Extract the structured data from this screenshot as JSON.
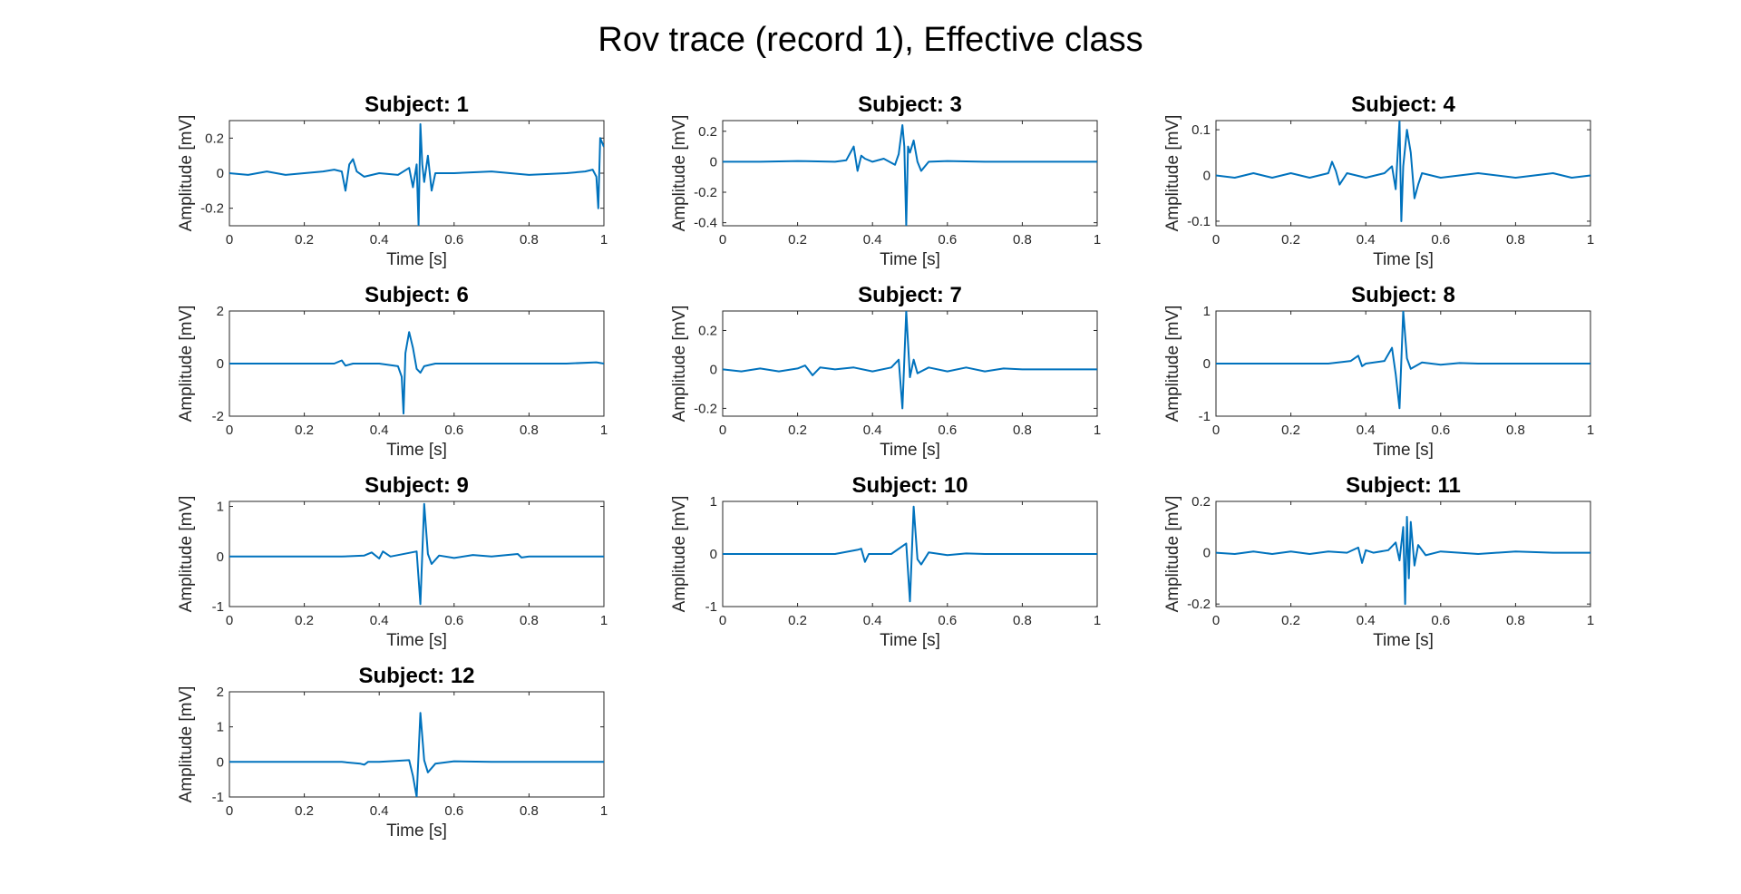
{
  "figure_title": "Rov trace (record 1), Effective class",
  "line_color": "#0072BD",
  "chart_data": [
    {
      "type": "line",
      "title": "Subject: 1",
      "xlabel": "Time [s]",
      "ylabel": "Amplitude [mV]",
      "xlim": [
        0,
        1
      ],
      "ylim": [
        -0.3,
        0.3
      ],
      "xticks": [
        0,
        0.2,
        0.4,
        0.6,
        0.8,
        1
      ],
      "xtick_labels": [
        "0",
        "0.2",
        "0.4",
        "0.6",
        "0.8",
        "1"
      ],
      "yticks": [
        -0.2,
        0,
        0.2
      ],
      "ytick_labels": [
        "-0.2",
        "0",
        "0.2"
      ],
      "series": [
        {
          "x": [
            0,
            0.05,
            0.1,
            0.15,
            0.2,
            0.25,
            0.28,
            0.3,
            0.31,
            0.32,
            0.33,
            0.34,
            0.36,
            0.4,
            0.45,
            0.48,
            0.49,
            0.5,
            0.505,
            0.51,
            0.515,
            0.52,
            0.53,
            0.54,
            0.55,
            0.6,
            0.7,
            0.8,
            0.9,
            0.95,
            0.97,
            0.98,
            0.985,
            0.99,
            1
          ],
          "y": [
            0,
            -0.01,
            0.01,
            -0.01,
            0,
            0.01,
            0.02,
            0.01,
            -0.1,
            0.05,
            0.08,
            0.01,
            -0.02,
            0,
            -0.01,
            0.03,
            -0.08,
            0.05,
            -0.3,
            0.28,
            0.05,
            -0.05,
            0.1,
            -0.1,
            0,
            0,
            0.01,
            -0.01,
            0,
            0.01,
            0.02,
            -0.02,
            -0.2,
            0.2,
            0.15
          ]
        }
      ]
    },
    {
      "type": "line",
      "title": "Subject: 3",
      "xlabel": "Time [s]",
      "ylabel": "Amplitude [mV]",
      "xlim": [
        0,
        1
      ],
      "ylim": [
        -0.42,
        0.27
      ],
      "xticks": [
        0,
        0.2,
        0.4,
        0.6,
        0.8,
        1
      ],
      "xtick_labels": [
        "0",
        "0.2",
        "0.4",
        "0.6",
        "0.8",
        "1"
      ],
      "yticks": [
        -0.4,
        -0.2,
        0,
        0.2
      ],
      "ytick_labels": [
        "-0.4",
        "-0.2",
        "0",
        "0.2"
      ],
      "series": [
        {
          "x": [
            0,
            0.1,
            0.2,
            0.3,
            0.33,
            0.35,
            0.36,
            0.37,
            0.38,
            0.4,
            0.43,
            0.46,
            0.47,
            0.48,
            0.485,
            0.49,
            0.495,
            0.5,
            0.51,
            0.52,
            0.53,
            0.55,
            0.6,
            0.7,
            0.8,
            0.9,
            1
          ],
          "y": [
            0,
            0,
            0.005,
            0,
            0.01,
            0.1,
            -0.06,
            0.04,
            0.02,
            0,
            0.02,
            -0.02,
            0.05,
            0.24,
            0.1,
            -0.42,
            0.1,
            0.06,
            0.14,
            0,
            -0.06,
            0,
            0.005,
            0,
            0,
            0,
            0
          ]
        }
      ]
    },
    {
      "type": "line",
      "title": "Subject: 4",
      "xlabel": "Time [s]",
      "ylabel": "Amplitude [mV]",
      "xlim": [
        0,
        1
      ],
      "ylim": [
        -0.11,
        0.12
      ],
      "xticks": [
        0,
        0.2,
        0.4,
        0.6,
        0.8,
        1
      ],
      "xtick_labels": [
        "0",
        "0.2",
        "0.4",
        "0.6",
        "0.8",
        "1"
      ],
      "yticks": [
        -0.1,
        0,
        0.1
      ],
      "ytick_labels": [
        "-0.1",
        "0",
        "0.1"
      ],
      "series": [
        {
          "x": [
            0,
            0.05,
            0.1,
            0.15,
            0.2,
            0.25,
            0.3,
            0.31,
            0.32,
            0.33,
            0.35,
            0.4,
            0.45,
            0.47,
            0.48,
            0.49,
            0.495,
            0.5,
            0.51,
            0.52,
            0.53,
            0.54,
            0.55,
            0.6,
            0.7,
            0.8,
            0.9,
            0.95,
            1
          ],
          "y": [
            0,
            -0.005,
            0.005,
            -0.005,
            0.005,
            -0.005,
            0.005,
            0.03,
            0.01,
            -0.02,
            0.005,
            -0.005,
            0.005,
            0.02,
            -0.03,
            0.12,
            -0.1,
            0.02,
            0.1,
            0.05,
            -0.05,
            -0.02,
            0.005,
            -0.005,
            0.005,
            -0.005,
            0.005,
            -0.005,
            0
          ]
        }
      ]
    },
    {
      "type": "line",
      "title": "Subject: 6",
      "xlabel": "Time [s]",
      "ylabel": "Amplitude [mV]",
      "xlim": [
        0,
        1
      ],
      "ylim": [
        -2,
        2
      ],
      "xticks": [
        0,
        0.2,
        0.4,
        0.6,
        0.8,
        1
      ],
      "xtick_labels": [
        "0",
        "0.2",
        "0.4",
        "0.6",
        "0.8",
        "1"
      ],
      "yticks": [
        -2,
        0,
        2
      ],
      "ytick_labels": [
        "-2",
        "0",
        "2"
      ],
      "series": [
        {
          "x": [
            0,
            0.1,
            0.2,
            0.28,
            0.3,
            0.31,
            0.33,
            0.4,
            0.45,
            0.46,
            0.465,
            0.47,
            0.48,
            0.49,
            0.5,
            0.51,
            0.52,
            0.55,
            0.6,
            0.7,
            0.8,
            0.9,
            0.98,
            1
          ],
          "y": [
            0,
            0,
            0,
            0,
            0.12,
            -0.08,
            0,
            0,
            -0.1,
            -0.5,
            -1.9,
            0.4,
            1.2,
            0.6,
            -0.2,
            -0.35,
            -0.1,
            0,
            0,
            0,
            0,
            0,
            0.05,
            0
          ]
        }
      ]
    },
    {
      "type": "line",
      "title": "Subject: 7",
      "xlabel": "Time [s]",
      "ylabel": "Amplitude [mV]",
      "xlim": [
        0,
        1
      ],
      "ylim": [
        -0.24,
        0.3
      ],
      "xticks": [
        0,
        0.2,
        0.4,
        0.6,
        0.8,
        1
      ],
      "xtick_labels": [
        "0",
        "0.2",
        "0.4",
        "0.6",
        "0.8",
        "1"
      ],
      "yticks": [
        -0.2,
        0,
        0.2
      ],
      "ytick_labels": [
        "-0.2",
        "0",
        "0.2"
      ],
      "series": [
        {
          "x": [
            0,
            0.05,
            0.1,
            0.15,
            0.2,
            0.22,
            0.24,
            0.26,
            0.3,
            0.35,
            0.4,
            0.45,
            0.47,
            0.48,
            0.49,
            0.5,
            0.51,
            0.52,
            0.55,
            0.6,
            0.65,
            0.7,
            0.75,
            0.8,
            0.9,
            1
          ],
          "y": [
            0,
            -0.01,
            0.005,
            -0.01,
            0.005,
            0.02,
            -0.03,
            0.01,
            0,
            0.01,
            -0.01,
            0.01,
            0.05,
            -0.2,
            0.3,
            -0.04,
            0.05,
            -0.02,
            0.01,
            -0.01,
            0.01,
            -0.01,
            0.005,
            0,
            0,
            0
          ]
        }
      ]
    },
    {
      "type": "line",
      "title": "Subject: 8",
      "xlabel": "Time [s]",
      "ylabel": "Amplitude [mV]",
      "xlim": [
        0,
        1
      ],
      "ylim": [
        -1,
        1
      ],
      "xticks": [
        0,
        0.2,
        0.4,
        0.6,
        0.8,
        1
      ],
      "xtick_labels": [
        "0",
        "0.2",
        "0.4",
        "0.6",
        "0.8",
        "1"
      ],
      "yticks": [
        -1,
        0,
        1
      ],
      "ytick_labels": [
        "-1",
        "0",
        "1"
      ],
      "series": [
        {
          "x": [
            0,
            0.1,
            0.2,
            0.3,
            0.36,
            0.38,
            0.39,
            0.4,
            0.45,
            0.47,
            0.48,
            0.49,
            0.5,
            0.51,
            0.52,
            0.55,
            0.6,
            0.65,
            0.7,
            0.8,
            0.9,
            1
          ],
          "y": [
            0,
            0,
            0,
            0,
            0.05,
            0.15,
            -0.05,
            0,
            0.05,
            0.3,
            -0.2,
            -0.85,
            1.0,
            0.1,
            -0.1,
            0.02,
            -0.02,
            0.01,
            0,
            0,
            0,
            0
          ]
        }
      ]
    },
    {
      "type": "line",
      "title": "Subject: 9",
      "xlabel": "Time [s]",
      "ylabel": "Amplitude [mV]",
      "xlim": [
        0,
        1
      ],
      "ylim": [
        -1,
        1.1
      ],
      "xticks": [
        0,
        0.2,
        0.4,
        0.6,
        0.8,
        1
      ],
      "xtick_labels": [
        "0",
        "0.2",
        "0.4",
        "0.6",
        "0.8",
        "1"
      ],
      "yticks": [
        -1,
        0,
        1
      ],
      "ytick_labels": [
        "-1",
        "0",
        "1"
      ],
      "series": [
        {
          "x": [
            0,
            0.1,
            0.2,
            0.3,
            0.36,
            0.38,
            0.4,
            0.41,
            0.43,
            0.5,
            0.51,
            0.52,
            0.53,
            0.54,
            0.56,
            0.6,
            0.65,
            0.7,
            0.77,
            0.78,
            0.8,
            0.9,
            1
          ],
          "y": [
            0,
            0,
            0,
            0,
            0.02,
            0.08,
            -0.04,
            0.1,
            0,
            0.1,
            -0.95,
            1.05,
            0.05,
            -0.15,
            0.02,
            -0.03,
            0.03,
            0,
            0.05,
            -0.02,
            0,
            0,
            0
          ]
        }
      ]
    },
    {
      "type": "line",
      "title": "Subject: 10",
      "xlabel": "Time [s]",
      "ylabel": "Amplitude [mV]",
      "xlim": [
        0,
        1
      ],
      "ylim": [
        -1,
        1
      ],
      "xticks": [
        0,
        0.2,
        0.4,
        0.6,
        0.8,
        1
      ],
      "xtick_labels": [
        "0",
        "0.2",
        "0.4",
        "0.6",
        "0.8",
        "1"
      ],
      "yticks": [
        -1,
        0,
        1
      ],
      "ytick_labels": [
        "-1",
        "0",
        "1"
      ],
      "series": [
        {
          "x": [
            0,
            0.1,
            0.2,
            0.3,
            0.36,
            0.37,
            0.38,
            0.39,
            0.45,
            0.49,
            0.5,
            0.51,
            0.52,
            0.53,
            0.55,
            0.6,
            0.65,
            0.7,
            0.8,
            0.9,
            1
          ],
          "y": [
            0,
            0,
            0,
            0,
            0.08,
            0.1,
            -0.15,
            0,
            0,
            0.2,
            -0.9,
            0.9,
            -0.1,
            -0.2,
            0.03,
            -0.02,
            0.01,
            0,
            0,
            0,
            0
          ]
        }
      ]
    },
    {
      "type": "line",
      "title": "Subject: 11",
      "xlabel": "Time [s]",
      "ylabel": "Amplitude [mV]",
      "xlim": [
        0,
        1
      ],
      "ylim": [
        -0.21,
        0.2
      ],
      "xticks": [
        0,
        0.2,
        0.4,
        0.6,
        0.8,
        1
      ],
      "xtick_labels": [
        "0",
        "0.2",
        "0.4",
        "0.6",
        "0.8",
        "1"
      ],
      "yticks": [
        -0.2,
        0,
        0.2
      ],
      "ytick_labels": [
        "-0.2",
        "0",
        "0.2"
      ],
      "series": [
        {
          "x": [
            0,
            0.05,
            0.1,
            0.15,
            0.2,
            0.25,
            0.3,
            0.35,
            0.38,
            0.39,
            0.4,
            0.42,
            0.46,
            0.48,
            0.49,
            0.5,
            0.505,
            0.51,
            0.515,
            0.52,
            0.53,
            0.54,
            0.56,
            0.6,
            0.7,
            0.8,
            0.9,
            1
          ],
          "y": [
            0,
            -0.005,
            0.005,
            -0.005,
            0.005,
            -0.005,
            0.005,
            0,
            0.02,
            -0.04,
            0.01,
            0,
            0.01,
            0.04,
            -0.03,
            0.1,
            -0.2,
            0.14,
            -0.1,
            0.12,
            -0.05,
            0.03,
            -0.01,
            0.005,
            -0.005,
            0.005,
            0,
            0
          ]
        }
      ]
    },
    {
      "type": "line",
      "title": "Subject: 12",
      "xlabel": "Time [s]",
      "ylabel": "Amplitude [mV]",
      "xlim": [
        0,
        1
      ],
      "ylim": [
        -1,
        2
      ],
      "xticks": [
        0,
        0.2,
        0.4,
        0.6,
        0.8,
        1
      ],
      "xtick_labels": [
        "0",
        "0.2",
        "0.4",
        "0.6",
        "0.8",
        "1"
      ],
      "yticks": [
        -1,
        0,
        1,
        2
      ],
      "ytick_labels": [
        "-1",
        "0",
        "1",
        "2"
      ],
      "series": [
        {
          "x": [
            0,
            0.1,
            0.2,
            0.3,
            0.35,
            0.36,
            0.37,
            0.4,
            0.48,
            0.49,
            0.5,
            0.51,
            0.52,
            0.53,
            0.55,
            0.6,
            0.7,
            0.8,
            0.9,
            1
          ],
          "y": [
            0,
            0,
            0,
            0,
            -0.05,
            -0.08,
            0,
            0,
            0.05,
            -0.4,
            -1.0,
            1.4,
            0.05,
            -0.3,
            -0.05,
            0.02,
            0,
            0,
            0,
            0
          ]
        }
      ]
    }
  ]
}
